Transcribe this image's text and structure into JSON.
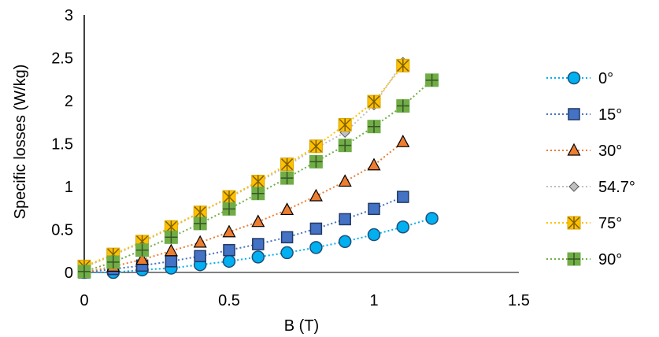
{
  "chart_data": {
    "type": "line",
    "title": "",
    "xlabel": "B (T)",
    "ylabel": "Specific losses (W/kg)",
    "xlim": [
      0,
      1.5
    ],
    "ylim": [
      0,
      3
    ],
    "xticks": [
      0,
      0.5,
      1,
      1.5
    ],
    "yticks": [
      0,
      0.5,
      1,
      1.5,
      2,
      2.5,
      3
    ],
    "grid": false,
    "legend_position": "right",
    "series": [
      {
        "name": "0°",
        "marker": "circle",
        "color": "#00b0f0",
        "stroke": "#1f4e79",
        "x": [
          0,
          0.1,
          0.2,
          0.3,
          0.4,
          0.5,
          0.6,
          0.7,
          0.8,
          0.9,
          1.0,
          1.1,
          1.2
        ],
        "y": [
          0.0,
          0.0,
          0.03,
          0.05,
          0.09,
          0.13,
          0.18,
          0.23,
          0.29,
          0.36,
          0.44,
          0.53,
          0.63
        ]
      },
      {
        "name": "15°",
        "marker": "square",
        "color": "#4472c4",
        "stroke": "#1f3864",
        "x": [
          0,
          0.1,
          0.2,
          0.3,
          0.4,
          0.5,
          0.6,
          0.7,
          0.8,
          0.9,
          1.0,
          1.1
        ],
        "y": [
          0.0,
          0.04,
          0.08,
          0.13,
          0.19,
          0.26,
          0.33,
          0.41,
          0.51,
          0.62,
          0.74,
          0.88
        ]
      },
      {
        "name": "30°",
        "marker": "triangle",
        "color": "#ed7d31",
        "stroke": "#000000",
        "x": [
          0,
          0.1,
          0.2,
          0.3,
          0.4,
          0.5,
          0.6,
          0.7,
          0.8,
          0.9,
          1.0,
          1.1
        ],
        "y": [
          0.0,
          0.07,
          0.15,
          0.25,
          0.35,
          0.47,
          0.59,
          0.73,
          0.89,
          1.06,
          1.25,
          1.52
        ]
      },
      {
        "name": "54.7°",
        "marker": "diamond",
        "color": "#bfbfbf",
        "stroke": "#595959",
        "x": [
          0,
          0.1,
          0.2,
          0.3,
          0.4,
          0.5,
          0.6,
          0.7,
          0.8,
          0.9,
          1.0,
          1.1
        ],
        "y": [
          0.06,
          0.2,
          0.35,
          0.52,
          0.7,
          0.87,
          1.05,
          1.24,
          1.45,
          1.63,
          1.95,
          2.45
        ]
      },
      {
        "name": "75°",
        "marker": "asterisk",
        "color": "#ffc000",
        "stroke": "#7f6000",
        "x": [
          0,
          0.1,
          0.2,
          0.3,
          0.4,
          0.5,
          0.6,
          0.7,
          0.8,
          0.9,
          1.0,
          1.1
        ],
        "y": [
          0.07,
          0.21,
          0.36,
          0.53,
          0.7,
          0.88,
          1.06,
          1.26,
          1.47,
          1.72,
          1.99,
          2.41
        ]
      },
      {
        "name": "90°",
        "marker": "plus-square",
        "color": "#70ad47",
        "stroke": "#375623",
        "x": [
          0,
          0.1,
          0.2,
          0.3,
          0.4,
          0.5,
          0.6,
          0.7,
          0.8,
          0.9,
          1.0,
          1.1,
          1.2
        ],
        "y": [
          0.01,
          0.12,
          0.26,
          0.41,
          0.57,
          0.74,
          0.92,
          1.1,
          1.29,
          1.48,
          1.7,
          1.94,
          2.24
        ]
      }
    ]
  }
}
